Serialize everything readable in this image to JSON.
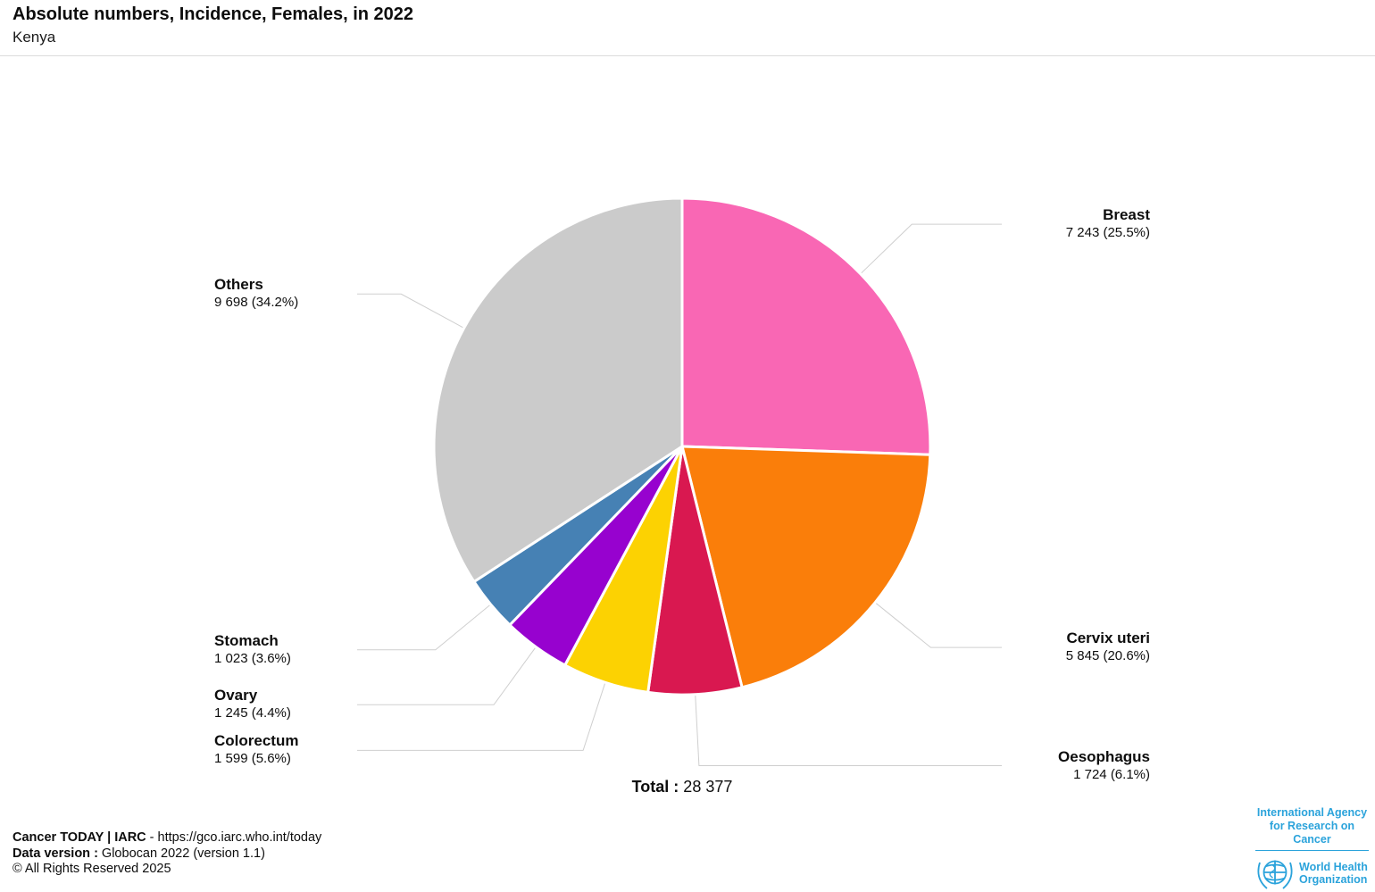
{
  "header": {
    "title": "Absolute numbers, Incidence, Females, in 2022",
    "subtitle": "Kenya"
  },
  "chart_data": {
    "type": "pie",
    "title": "Absolute numbers, Incidence, Females, in 2022",
    "subtitle": "Kenya",
    "total_label": "Total :",
    "total_display": "28 377",
    "total": 28377,
    "direction": "clockwise",
    "start_angle_deg": 0,
    "legend_position": "none",
    "labels_style": "outside-with-leader-lines",
    "slices": [
      {
        "label": "Breast",
        "value": 7243,
        "value_display": "7 243",
        "percent": 25.5,
        "color": "#F967B4"
      },
      {
        "label": "Cervix uteri",
        "value": 5845,
        "value_display": "5 845",
        "percent": 20.6,
        "color": "#FA7E0A"
      },
      {
        "label": "Oesophagus",
        "value": 1724,
        "value_display": "1 724",
        "percent": 6.1,
        "color": "#D91850"
      },
      {
        "label": "Colorectum",
        "value": 1599,
        "value_display": "1 599",
        "percent": 5.6,
        "color": "#FCD202"
      },
      {
        "label": "Ovary",
        "value": 1245,
        "value_display": "1 245",
        "percent": 4.4,
        "color": "#9702CF"
      },
      {
        "label": "Stomach",
        "value": 1023,
        "value_display": "1 023",
        "percent": 3.6,
        "color": "#4681B4"
      },
      {
        "label": "Others",
        "value": 9698,
        "value_display": "9 698",
        "percent": 34.2,
        "color": "#CBCBCB"
      }
    ],
    "slice_border_color": "#FFFFFF",
    "leader_line_color": "#CFCFCF"
  },
  "footer": {
    "line1_bold": "Cancer TODAY | IARC",
    "line1_rest": " - https://gco.iarc.who.int/today",
    "line2_bold": "Data version :",
    "line2_rest": " Globocan 2022 (version 1.1)",
    "line3": "© All Rights Reserved 2025"
  },
  "logos": {
    "iarc_name_line1": "International Agency",
    "iarc_name_line2": "for Research on Cancer",
    "who_name_line1": "World Health",
    "who_name_line2": "Organization",
    "brand_color": "#2BA3DB"
  }
}
